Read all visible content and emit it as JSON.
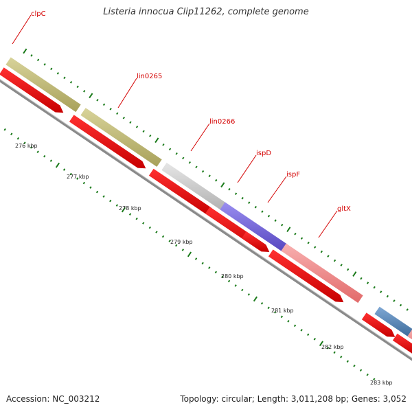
{
  "title": "Listeria innocua Clip11262, complete genome",
  "footer": {
    "accession": "Accession: NC_003212",
    "summary": "Topology: circular; Length: 3,011,208 bp; Genes: 3,052"
  },
  "colors": {
    "backbone": "#888888",
    "cds_arrow": "#ff0000",
    "label": "#d40000",
    "tick": "#1a7a1a"
  },
  "gene_labels": [
    "clpC",
    "lin0265",
    "lin0266",
    "ispD",
    "ispF",
    "gltX"
  ],
  "tick_labels": [
    "276 kbp",
    "277 kbp",
    "278 kbp",
    "279 kbp",
    "280 kbp",
    "281 kbp",
    "282 kbp",
    "283 kbp"
  ]
}
